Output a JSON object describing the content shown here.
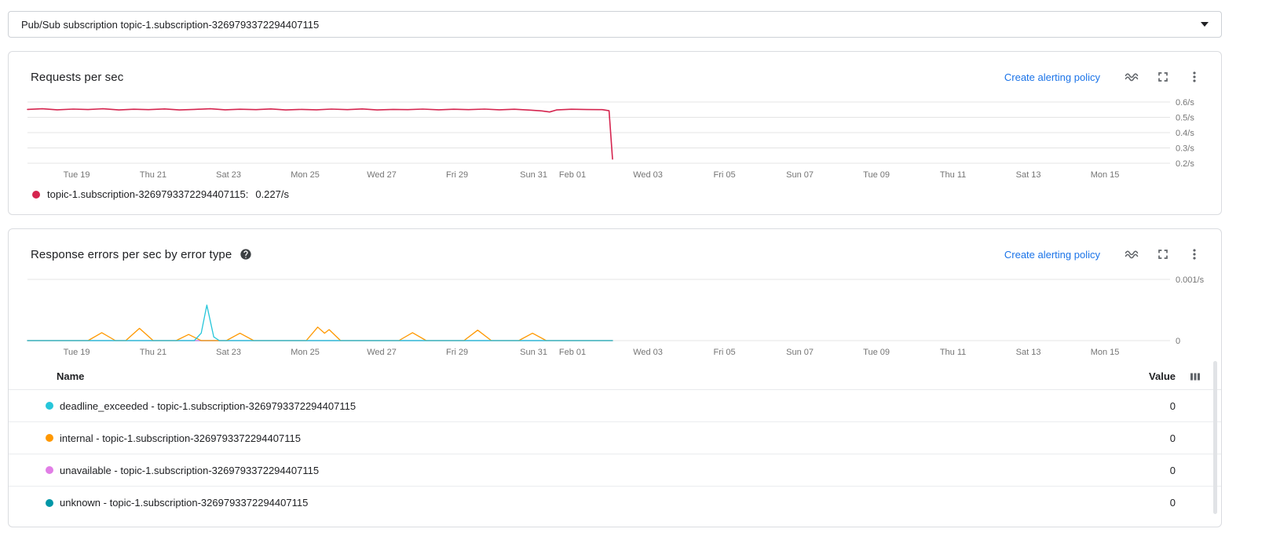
{
  "selector": {
    "label": "Pub/Sub subscription topic-1.subscription-3269793372294407115"
  },
  "cards": {
    "requests": {
      "title": "Requests per sec",
      "alert_link": "Create alerting policy",
      "legend": {
        "series": "topic-1.subscription-3269793372294407115:",
        "value": "0.227/s",
        "color": "#d5254f"
      }
    },
    "errors": {
      "title": "Response errors per sec by error type",
      "alert_link": "Create alerting policy",
      "table": {
        "name_header": "Name",
        "value_header": "Value",
        "rows": [
          {
            "color": "#26c6da",
            "name": "deadline_exceeded - topic-1.subscription-3269793372294407115",
            "value": "0"
          },
          {
            "color": "#ff9800",
            "name": "internal - topic-1.subscription-3269793372294407115",
            "value": "0"
          },
          {
            "color": "#e17ee6",
            "name": "unavailable - topic-1.subscription-3269793372294407115",
            "value": "0"
          },
          {
            "color": "#0097a7",
            "name": "unknown - topic-1.subscription-3269793372294407115",
            "value": "0"
          }
        ]
      }
    }
  },
  "chart_data": [
    {
      "type": "line",
      "title": "Requests per sec",
      "ylim": [
        0.2,
        0.6
      ],
      "grid": true,
      "legend_position": "bottom-left",
      "y_ticks": [
        {
          "v": 0.6,
          "label": "0.6/s"
        },
        {
          "v": 0.5,
          "label": "0.5/s"
        },
        {
          "v": 0.4,
          "label": "0.4/s"
        },
        {
          "v": 0.3,
          "label": "0.3/s"
        },
        {
          "v": 0.2,
          "label": "0.2/s"
        }
      ],
      "x_ticks": {
        "labels": [
          "Tue 19",
          "Thu 21",
          "Sat 23",
          "Mon 25",
          "Wed 27",
          "Fri 29",
          "Sun 31",
          "Feb 01",
          "Wed 03",
          "Fri 05",
          "Sun 07",
          "Tue 09",
          "Thu 11",
          "Sat 13",
          "Mon 15"
        ],
        "fracs": [
          0.043,
          0.11,
          0.176,
          0.243,
          0.31,
          0.376,
          0.443,
          0.477,
          0.543,
          0.61,
          0.676,
          0.743,
          0.81,
          0.876,
          0.943
        ]
      },
      "series": [
        {
          "name": "topic-1.subscription-3269793372294407115",
          "color": "#d5254f",
          "current_value": "0.227/s",
          "points": [
            [
              0.0,
              0.552
            ],
            [
              0.013,
              0.556
            ],
            [
              0.026,
              0.549
            ],
            [
              0.04,
              0.554
            ],
            [
              0.053,
              0.551
            ],
            [
              0.066,
              0.556
            ],
            [
              0.08,
              0.548
            ],
            [
              0.093,
              0.553
            ],
            [
              0.106,
              0.55
            ],
            [
              0.12,
              0.555
            ],
            [
              0.133,
              0.548
            ],
            [
              0.146,
              0.552
            ],
            [
              0.16,
              0.556
            ],
            [
              0.173,
              0.549
            ],
            [
              0.186,
              0.553
            ],
            [
              0.2,
              0.55
            ],
            [
              0.213,
              0.555
            ],
            [
              0.226,
              0.548
            ],
            [
              0.24,
              0.552
            ],
            [
              0.253,
              0.549
            ],
            [
              0.266,
              0.554
            ],
            [
              0.28,
              0.55
            ],
            [
              0.293,
              0.555
            ],
            [
              0.306,
              0.548
            ],
            [
              0.32,
              0.552
            ],
            [
              0.333,
              0.55
            ],
            [
              0.346,
              0.554
            ],
            [
              0.36,
              0.549
            ],
            [
              0.373,
              0.553
            ],
            [
              0.386,
              0.55
            ],
            [
              0.4,
              0.554
            ],
            [
              0.413,
              0.549
            ],
            [
              0.426,
              0.553
            ],
            [
              0.44,
              0.547
            ],
            [
              0.45,
              0.542
            ],
            [
              0.457,
              0.535
            ],
            [
              0.463,
              0.548
            ],
            [
              0.476,
              0.553
            ],
            [
              0.49,
              0.551
            ],
            [
              0.503,
              0.55
            ],
            [
              0.509,
              0.543
            ],
            [
              0.512,
              0.227
            ]
          ]
        }
      ]
    },
    {
      "type": "line",
      "title": "Response errors per sec by error type",
      "ylim": [
        0,
        0.001
      ],
      "grid": true,
      "legend_position": "table-below",
      "y_ticks": [
        {
          "v": 0.001,
          "label": "0.001/s"
        },
        {
          "v": 0,
          "label": "0"
        }
      ],
      "x_ticks": {
        "labels": [
          "Tue 19",
          "Thu 21",
          "Sat 23",
          "Mon 25",
          "Wed 27",
          "Fri 29",
          "Sun 31",
          "Feb 01",
          "Wed 03",
          "Fri 05",
          "Sun 07",
          "Tue 09",
          "Thu 11",
          "Sat 13",
          "Mon 15"
        ],
        "fracs": [
          0.043,
          0.11,
          0.176,
          0.243,
          0.31,
          0.376,
          0.443,
          0.477,
          0.543,
          0.61,
          0.676,
          0.743,
          0.81,
          0.876,
          0.943
        ]
      },
      "series": [
        {
          "name": "deadline_exceeded",
          "color": "#26c6da",
          "points": [
            [
              0,
              0
            ],
            [
              0.146,
              0
            ],
            [
              0.152,
              0.00012
            ],
            [
              0.157,
              0.00058
            ],
            [
              0.163,
              6e-05
            ],
            [
              0.168,
              0
            ],
            [
              0.512,
              0
            ]
          ]
        },
        {
          "name": "internal",
          "color": "#ff9800",
          "points": [
            [
              0,
              0
            ],
            [
              0.053,
              0
            ],
            [
              0.065,
              0.00013
            ],
            [
              0.077,
              0
            ],
            [
              0.086,
              0
            ],
            [
              0.098,
              0.0002
            ],
            [
              0.11,
              0
            ],
            [
              0.13,
              0
            ],
            [
              0.141,
              0.0001
            ],
            [
              0.152,
              0
            ],
            [
              0.174,
              0
            ],
            [
              0.186,
              0.00012
            ],
            [
              0.198,
              0
            ],
            [
              0.244,
              0
            ],
            [
              0.254,
              0.00022
            ],
            [
              0.26,
              0.00012
            ],
            [
              0.264,
              0.00018
            ],
            [
              0.274,
              0
            ],
            [
              0.325,
              0
            ],
            [
              0.337,
              0.00013
            ],
            [
              0.349,
              0
            ],
            [
              0.382,
              0
            ],
            [
              0.394,
              0.00017
            ],
            [
              0.406,
              0
            ],
            [
              0.43,
              0
            ],
            [
              0.442,
              0.00012
            ],
            [
              0.454,
              0
            ],
            [
              0.512,
              0
            ]
          ]
        },
        {
          "name": "unavailable",
          "color": "#e17ee6",
          "points": [
            [
              0,
              0
            ],
            [
              0.512,
              0
            ]
          ]
        },
        {
          "name": "unknown",
          "color": "#0097a7",
          "points": [
            [
              0,
              0
            ],
            [
              0.512,
              0
            ]
          ]
        }
      ]
    }
  ]
}
